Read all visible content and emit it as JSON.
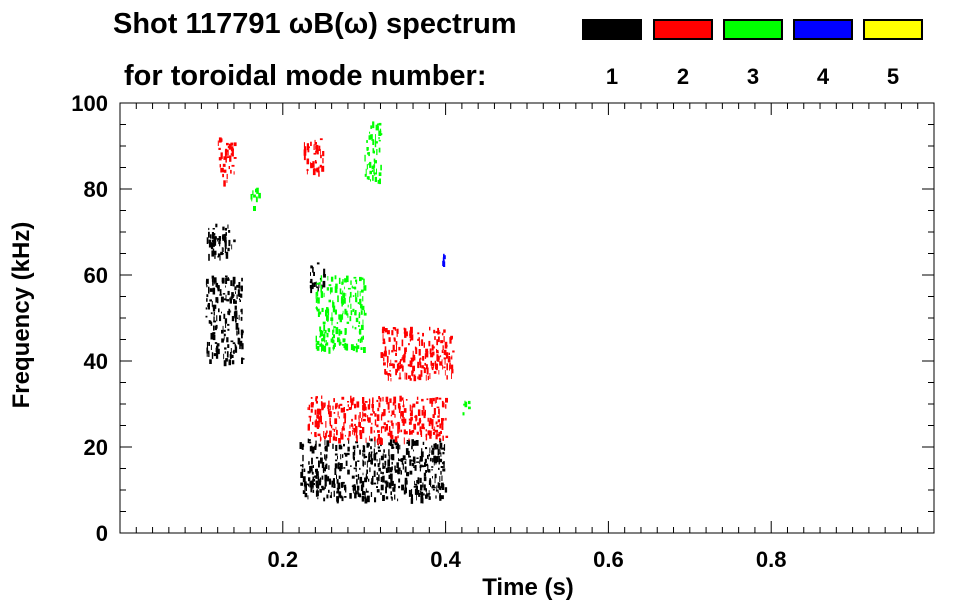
{
  "title": {
    "line1": "Shot 117791 ωB(ω) spectrum",
    "line2": "for toroidal mode number:"
  },
  "legend": [
    {
      "label": "1",
      "color": "#000000"
    },
    {
      "label": "2",
      "color": "#ff0000"
    },
    {
      "label": "3",
      "color": "#00ff00"
    },
    {
      "label": "4",
      "color": "#0000ff"
    },
    {
      "label": "5",
      "color": "#ffff00"
    }
  ],
  "chart_data": {
    "type": "heatmap",
    "title": "Shot 117791 ωB(ω) spectrum",
    "xlabel": "Time (s)",
    "ylabel": "Frequency (kHz)",
    "xlim": [
      0.0,
      1.0
    ],
    "ylim": [
      0,
      100
    ],
    "xticks": [
      0.2,
      0.4,
      0.6,
      0.8
    ],
    "xtick_labels": [
      "0.2",
      "0.4",
      "0.6",
      "0.8"
    ],
    "yticks": [
      0,
      20,
      40,
      60,
      80,
      100
    ],
    "ytick_labels": [
      "0",
      "20",
      "40",
      "60",
      "80",
      "100"
    ],
    "grid": false,
    "legend_position": "top",
    "series": [
      {
        "name": "1",
        "color": "#000000",
        "regions": [
          {
            "t": [
              0.105,
              0.14
            ],
            "f": [
              64,
              72
            ]
          },
          {
            "t": [
              0.105,
              0.15
            ],
            "f": [
              40,
              60
            ]
          },
          {
            "t": [
              0.22,
              0.4
            ],
            "f": [
              8,
              22
            ]
          },
          {
            "t": [
              0.23,
              0.25
            ],
            "f": [
              57,
              63
            ]
          }
        ]
      },
      {
        "name": "2",
        "color": "#ff0000",
        "regions": [
          {
            "t": [
              0.23,
              0.4
            ],
            "f": [
              22,
              32
            ]
          },
          {
            "t": [
              0.32,
              0.41
            ],
            "f": [
              36,
              48
            ]
          },
          {
            "t": [
              0.225,
              0.25
            ],
            "f": [
              84,
              92
            ]
          },
          {
            "t": [
              0.12,
              0.14
            ],
            "f": [
              82,
              92
            ]
          }
        ]
      },
      {
        "name": "3",
        "color": "#00ff00",
        "regions": [
          {
            "t": [
              0.24,
              0.3
            ],
            "f": [
              43,
              60
            ]
          },
          {
            "t": [
              0.3,
              0.32
            ],
            "f": [
              82,
              96
            ]
          },
          {
            "t": [
              0.16,
              0.17
            ],
            "f": [
              76,
              81
            ]
          },
          {
            "t": [
              0.42,
              0.43
            ],
            "f": [
              28,
              31
            ]
          }
        ]
      },
      {
        "name": "4",
        "color": "#0000ff",
        "regions": [
          {
            "t": [
              0.395,
              0.4
            ],
            "f": [
              63,
              65
            ]
          }
        ]
      },
      {
        "name": "5",
        "color": "#ffff00",
        "regions": []
      }
    ]
  }
}
